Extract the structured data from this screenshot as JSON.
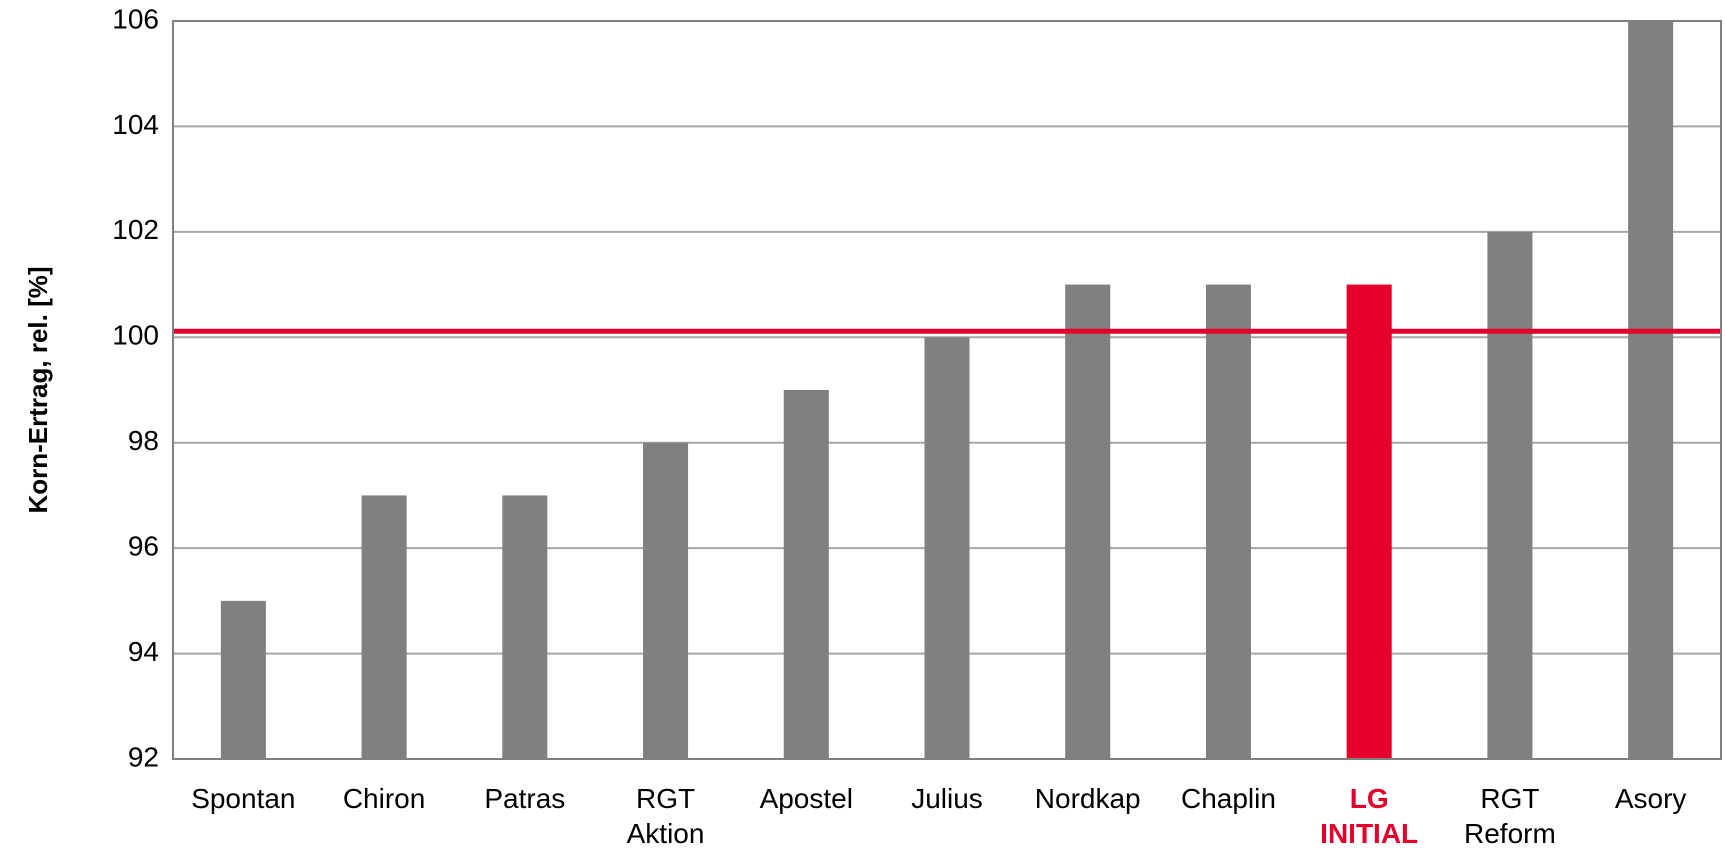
{
  "chart_data": {
    "type": "bar",
    "y_label": "Korn-Ertrag, rel. [%]",
    "categories": [
      "Spontan",
      "Chiron",
      "Patras",
      "RGT Aktion",
      "Apostel",
      "Julius",
      "Nordkap",
      "Chaplin",
      "LG INITIAL",
      "RGT Reform",
      "Asory"
    ],
    "values": [
      95,
      97,
      97,
      98,
      99,
      100,
      101,
      101,
      101,
      102,
      106
    ],
    "color": "#808080",
    "colors": [
      "#808080",
      "#808080",
      "#808080",
      "#808080",
      "#808080",
      "#808080",
      "#808080",
      "#808080",
      "#e4002b",
      "#808080",
      "#808080"
    ],
    "reference_line": {
      "value": 100,
      "color": "#e4002b"
    },
    "ylim": [
      92,
      106
    ],
    "yticks": [
      92,
      94,
      96,
      98,
      100,
      102,
      104,
      106
    ],
    "grid": true
  }
}
